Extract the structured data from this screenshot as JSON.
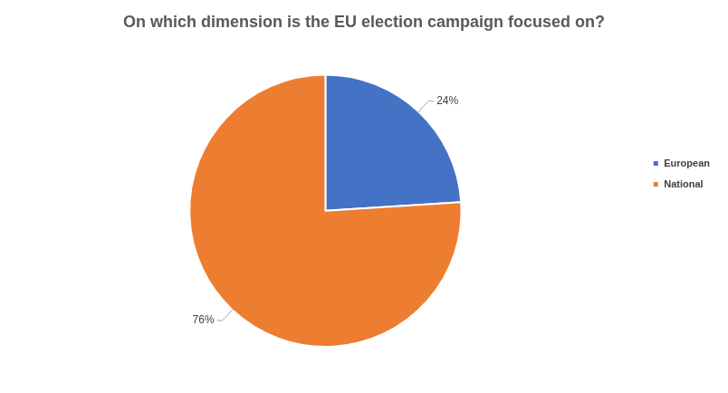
{
  "chart_data": {
    "type": "pie",
    "title": "On which dimension is the EU election campaign focused on?",
    "categories": [
      "European",
      "National"
    ],
    "values": [
      24,
      76
    ],
    "value_labels": [
      "24%",
      "76%"
    ],
    "colors": [
      "#4472c4",
      "#ed7d31"
    ],
    "legend": "right",
    "data_labels": true
  }
}
